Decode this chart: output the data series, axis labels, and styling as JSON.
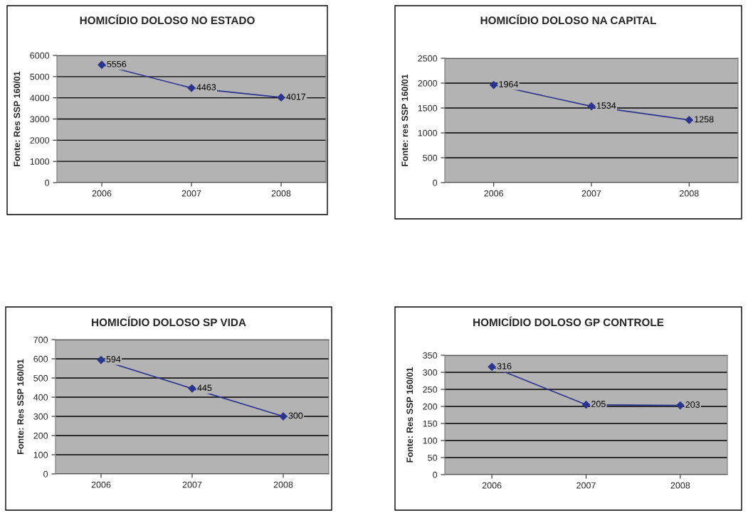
{
  "chart_data": [
    {
      "type": "line",
      "title": "HOMICÍDIO DOLOSO NO ESTADO",
      "ylabel": "Fonte: Res SSP 160/01",
      "categories": [
        "2006",
        "2007",
        "2008"
      ],
      "values": [
        5556,
        4463,
        4017
      ],
      "color": "#2b3590",
      "ylim": [
        0,
        6000
      ],
      "yticks": [
        0,
        1000,
        2000,
        3000,
        4000,
        5000,
        6000
      ],
      "grid": "y",
      "marker": "diamond",
      "line_style": "solid",
      "data_labels": true,
      "legend": false
    },
    {
      "type": "line",
      "title": "HOMICÍDIO DOLOSO NA CAPITAL",
      "ylabel": "Fonte: res SSP 160/01",
      "categories": [
        "2006",
        "2007",
        "2008"
      ],
      "values": [
        1964,
        1534,
        1258
      ],
      "color": "#2b3590",
      "ylim": [
        0,
        2500
      ],
      "yticks": [
        0,
        500,
        1000,
        1500,
        2000,
        2500
      ],
      "grid": "y",
      "marker": "diamond",
      "line_style": "solid",
      "data_labels": true,
      "legend": false
    },
    {
      "type": "line",
      "title": "HOMICÍDIO DOLOSO SP VIDA",
      "ylabel": "Fonte: Res SSP 160/01",
      "categories": [
        "2006",
        "2007",
        "2008"
      ],
      "values": [
        594,
        445,
        300
      ],
      "color": "#2b3590",
      "ylim": [
        0,
        700
      ],
      "yticks": [
        0,
        100,
        200,
        300,
        400,
        500,
        600,
        700
      ],
      "grid": "y",
      "marker": "diamond",
      "line_style": "solid",
      "data_labels": true,
      "legend": false
    },
    {
      "type": "line",
      "title": "HOMICÍDIO DOLOSO GP CONTROLE",
      "ylabel": "Fonte: Res SSP 160/01",
      "categories": [
        "2006",
        "2007",
        "2008"
      ],
      "values": [
        316,
        205,
        203
      ],
      "color": "#2b3590",
      "ylim": [
        0,
        350
      ],
      "yticks": [
        0,
        50,
        100,
        150,
        200,
        250,
        300,
        350
      ],
      "grid": "y",
      "marker": "diamond",
      "line_style": "solid",
      "data_labels": true,
      "legend": false
    }
  ]
}
